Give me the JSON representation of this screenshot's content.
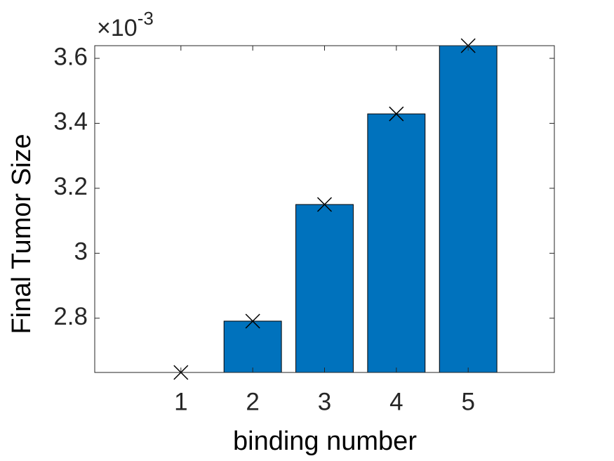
{
  "chart_data": {
    "type": "bar",
    "x": [
      1,
      2,
      3,
      4,
      5
    ],
    "values": [
      2.633,
      2.791,
      3.15,
      3.429,
      3.639
    ],
    "color": "#0072bd",
    "marker_color": "#000000",
    "xlabel": "binding number",
    "ylabel": "Final Tumor  Size",
    "multiplier_base": "×10",
    "multiplier_exponent": "-3",
    "xlim": [
      -0.2,
      6.2
    ],
    "xticks": [
      1,
      2,
      3,
      4,
      5
    ],
    "ylim": [
      2.633,
      3.639
    ],
    "yticks": [
      2.8,
      3,
      3.2,
      3.4,
      3.6
    ],
    "grid": false
  }
}
